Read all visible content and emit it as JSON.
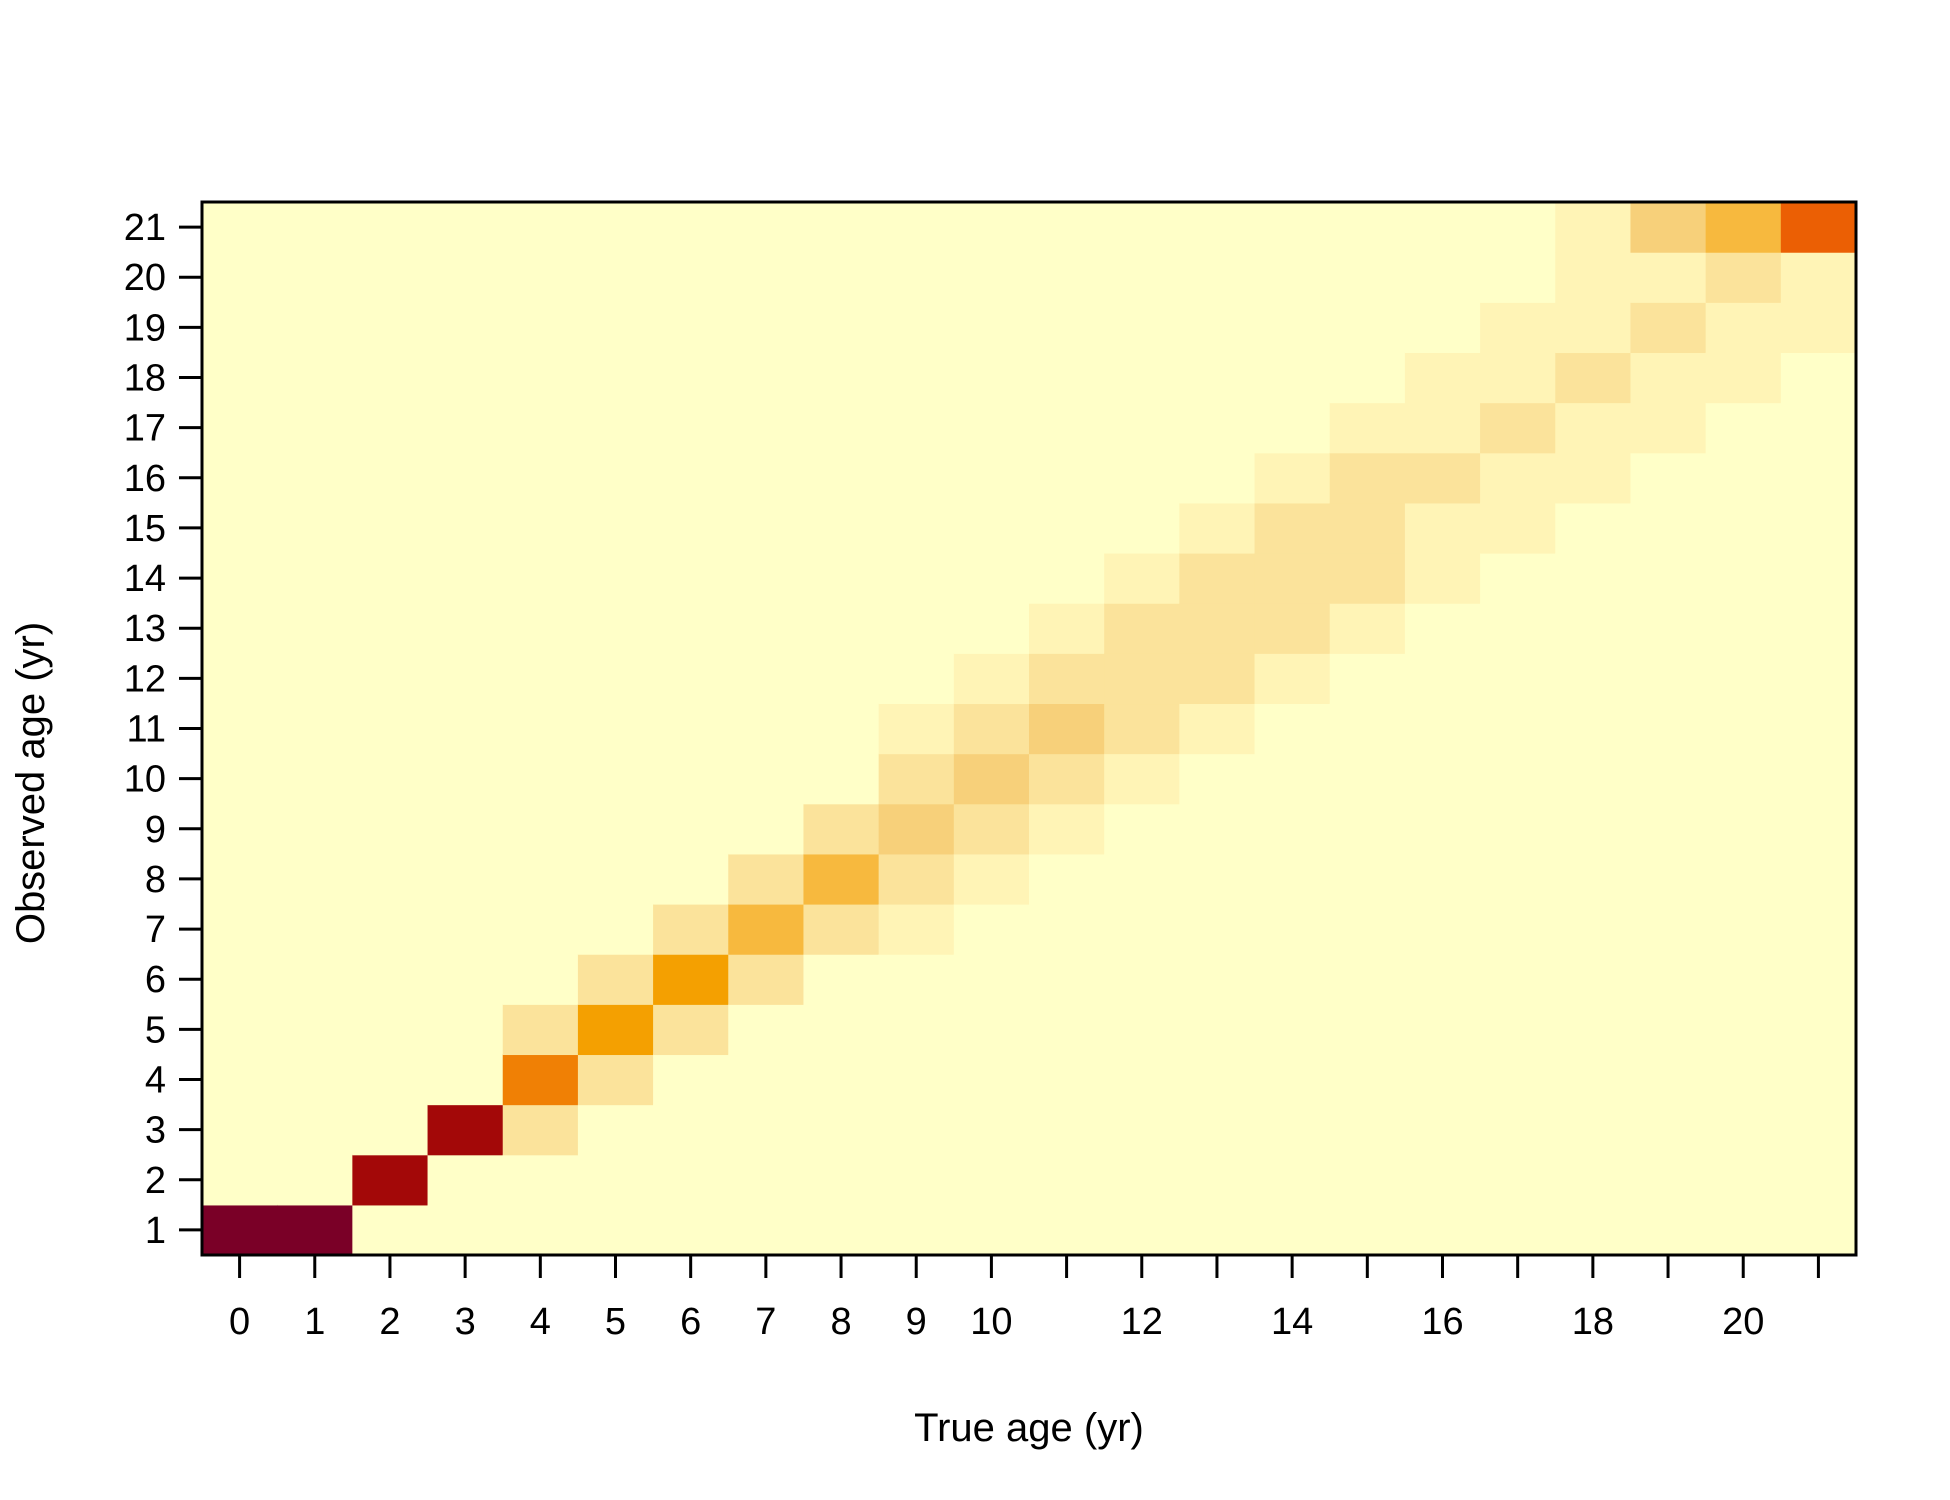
{
  "chart_data": {
    "type": "heatmap",
    "xlabel": "True age (yr)",
    "ylabel": "Observed age (yr)",
    "x": [
      0,
      1,
      2,
      3,
      4,
      5,
      6,
      7,
      8,
      9,
      10,
      11,
      12,
      13,
      14,
      15,
      16,
      17,
      18,
      19,
      20,
      21
    ],
    "y": [
      1,
      2,
      3,
      4,
      5,
      6,
      7,
      8,
      9,
      10,
      11,
      12,
      13,
      14,
      15,
      16,
      17,
      18,
      19,
      20,
      21
    ],
    "x_tick_labels": [
      "0",
      "1",
      "2",
      "3",
      "4",
      "5",
      "6",
      "7",
      "8",
      "9",
      "10",
      "12",
      "14",
      "16",
      "18",
      "20"
    ],
    "x_tick_label_values": [
      0,
      1,
      2,
      3,
      4,
      5,
      6,
      7,
      8,
      9,
      10,
      12,
      14,
      16,
      18,
      20
    ],
    "x_tick_marks": [
      0,
      1,
      2,
      3,
      4,
      5,
      6,
      7,
      8,
      9,
      10,
      11,
      12,
      13,
      14,
      15,
      16,
      17,
      18,
      19,
      20,
      21
    ],
    "y_tick_labels": [
      "1",
      "2",
      "3",
      "4",
      "5",
      "6",
      "7",
      "8",
      "9",
      "10",
      "11",
      "12",
      "13",
      "14",
      "15",
      "16",
      "17",
      "18",
      "19",
      "20",
      "21"
    ],
    "colors": {
      "0": "#FFFFC8",
      "1": "#FFF4B6",
      "2": "#FBE39B",
      "3": "#F7D07A",
      "4": "#F7B93E",
      "5": "#F4A001",
      "6": "#F08005",
      "7": "#EB5F04",
      "8": "#A30808",
      "9": "#7A0027"
    },
    "cells": [
      [
        0,
        1,
        9
      ],
      [
        1,
        1,
        9
      ],
      [
        2,
        2,
        8
      ],
      [
        3,
        3,
        8
      ],
      [
        4,
        3,
        2
      ],
      [
        4,
        4,
        6
      ],
      [
        5,
        4,
        2
      ],
      [
        4,
        5,
        2
      ],
      [
        5,
        5,
        5
      ],
      [
        6,
        5,
        2
      ],
      [
        5,
        6,
        2
      ],
      [
        6,
        6,
        5
      ],
      [
        7,
        6,
        2
      ],
      [
        6,
        7,
        2
      ],
      [
        7,
        7,
        4
      ],
      [
        8,
        7,
        2
      ],
      [
        9,
        7,
        1
      ],
      [
        7,
        8,
        2
      ],
      [
        8,
        8,
        4
      ],
      [
        9,
        8,
        2
      ],
      [
        10,
        8,
        1
      ],
      [
        8,
        9,
        2
      ],
      [
        9,
        9,
        3
      ],
      [
        10,
        9,
        2
      ],
      [
        11,
        9,
        1
      ],
      [
        9,
        10,
        2
      ],
      [
        10,
        10,
        3
      ],
      [
        11,
        10,
        2
      ],
      [
        12,
        10,
        1
      ],
      [
        9,
        11,
        1
      ],
      [
        10,
        11,
        2
      ],
      [
        11,
        11,
        3
      ],
      [
        12,
        11,
        2
      ],
      [
        13,
        11,
        1
      ],
      [
        10,
        12,
        1
      ],
      [
        11,
        12,
        2
      ],
      [
        12,
        12,
        2
      ],
      [
        13,
        12,
        2
      ],
      [
        14,
        12,
        1
      ],
      [
        11,
        13,
        1
      ],
      [
        12,
        13,
        2
      ],
      [
        13,
        13,
        2
      ],
      [
        14,
        13,
        2
      ],
      [
        15,
        13,
        1
      ],
      [
        12,
        14,
        1
      ],
      [
        13,
        14,
        2
      ],
      [
        14,
        14,
        2
      ],
      [
        15,
        14,
        2
      ],
      [
        16,
        14,
        1
      ],
      [
        13,
        15,
        1
      ],
      [
        14,
        15,
        2
      ],
      [
        15,
        15,
        2
      ],
      [
        16,
        15,
        1
      ],
      [
        17,
        15,
        1
      ],
      [
        14,
        16,
        1
      ],
      [
        15,
        16,
        2
      ],
      [
        16,
        16,
        2
      ],
      [
        17,
        16,
        1
      ],
      [
        18,
        16,
        1
      ],
      [
        15,
        17,
        1
      ],
      [
        16,
        17,
        1
      ],
      [
        17,
        17,
        2
      ],
      [
        18,
        17,
        1
      ],
      [
        19,
        17,
        1
      ],
      [
        16,
        18,
        1
      ],
      [
        17,
        18,
        1
      ],
      [
        18,
        18,
        2
      ],
      [
        19,
        18,
        1
      ],
      [
        20,
        18,
        1
      ],
      [
        17,
        19,
        1
      ],
      [
        18,
        19,
        1
      ],
      [
        19,
        19,
        2
      ],
      [
        20,
        19,
        1
      ],
      [
        21,
        19,
        1
      ],
      [
        18,
        20,
        1
      ],
      [
        19,
        20,
        1
      ],
      [
        20,
        20,
        2
      ],
      [
        21,
        20,
        1
      ],
      [
        18,
        21,
        1
      ],
      [
        19,
        21,
        3
      ],
      [
        20,
        21,
        4
      ],
      [
        21,
        21,
        7
      ]
    ]
  }
}
